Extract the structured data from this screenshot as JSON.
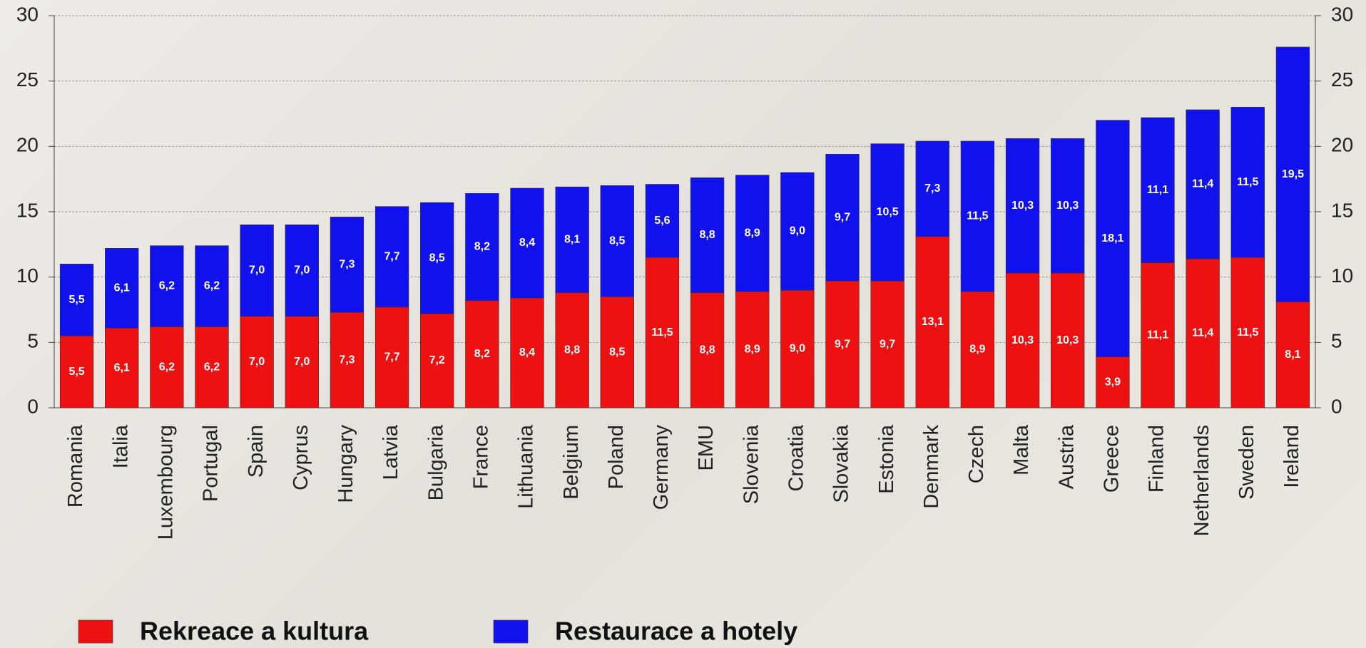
{
  "chart_data": {
    "type": "stacked_bar",
    "categories": [
      "Romania",
      "Italia",
      "Luxembourg",
      "Portugal",
      "Spain",
      "Cyprus",
      "Hungary",
      "Latvia",
      "Bulgaria",
      "France",
      "Lithuania",
      "Belgium",
      "Poland",
      "Germany",
      "EMU",
      "Slovenia",
      "Croatia",
      "Slovakia",
      "Estonia",
      "Denmark",
      "Czech",
      "Malta",
      "Austria",
      "Greece",
      "Finland",
      "Netherlands",
      "Sweden",
      "Ireland"
    ],
    "series": [
      {
        "name": "Rekreace a kultura",
        "color": "#ee1111",
        "values": [
          5.5,
          6.1,
          6.2,
          6.2,
          7.0,
          7.0,
          7.3,
          7.7,
          7.2,
          8.2,
          8.4,
          8.8,
          8.5,
          11.5,
          8.8,
          8.9,
          9.0,
          9.7,
          9.7,
          13.1,
          8.9,
          10.3,
          10.3,
          3.9,
          11.1,
          11.4,
          11.5,
          8.1
        ],
        "value_labels": [
          "5,5",
          "6,1",
          "6,2",
          "6,2",
          "7,0",
          "7,0",
          "7,3",
          "7,7",
          "7,2",
          "8,2",
          "8,4",
          "8,8",
          "8,5",
          "11,5",
          "8,8",
          "8,9",
          "9,0",
          "9,7",
          "9,7",
          "13,1",
          "8,9",
          "10,3",
          "10,3",
          "3,9",
          "11,1",
          "11,4",
          "11,5",
          "8,1"
        ]
      },
      {
        "name": "Restaurace a hotely",
        "color": "#1111ee",
        "values": [
          5.5,
          6.1,
          6.2,
          6.2,
          7.0,
          7.0,
          7.3,
          7.7,
          8.5,
          8.2,
          8.4,
          8.1,
          8.5,
          5.6,
          8.8,
          8.9,
          9.0,
          9.7,
          10.5,
          7.3,
          11.5,
          10.3,
          10.3,
          18.1,
          11.1,
          11.4,
          11.5,
          19.5
        ],
        "value_labels": [
          "5,5",
          "6,1",
          "6,2",
          "6,2",
          "7,0",
          "7,0",
          "7,3",
          "7,7",
          "8,5",
          "8,2",
          "8,4",
          "8,1",
          "8,5",
          "5,6",
          "8,8",
          "8,9",
          "9,0",
          "9,7",
          "10,5",
          "7,3",
          "11,5",
          "10,3",
          "10,3",
          "18,1",
          "11,1",
          "11,4",
          "11,5",
          "19,5"
        ]
      }
    ],
    "ylim": [
      0,
      30
    ],
    "yticks": [
      0,
      5,
      10,
      15,
      20,
      25,
      30
    ],
    "y2lim": [
      0,
      30
    ],
    "y2ticks": [
      0,
      5,
      10,
      15,
      20,
      25,
      30
    ],
    "grid": true,
    "legend": "bottom"
  }
}
